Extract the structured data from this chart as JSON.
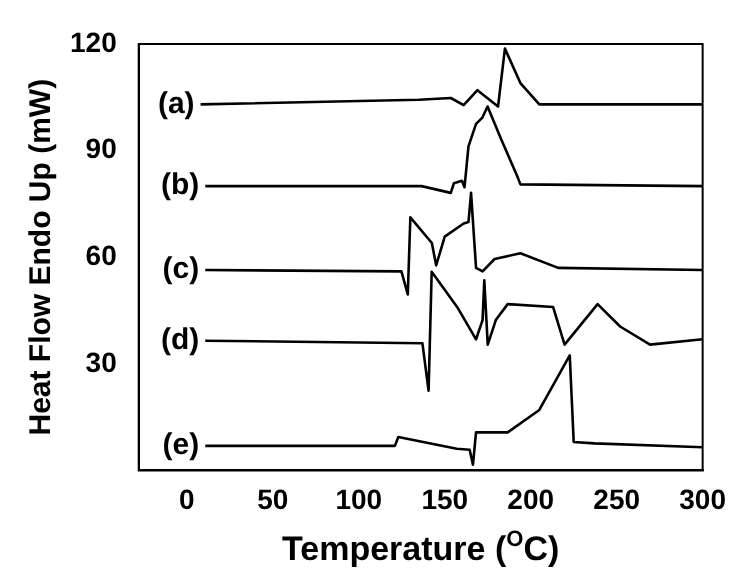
{
  "chart_data": {
    "type": "line",
    "xlabel": "Temperature ($^{O}$C)",
    "ylabel": "Heat Flow Endo Up (mW)",
    "xlim": [
      -28,
      300
    ],
    "xticks": [
      0,
      50,
      100,
      150,
      200,
      250,
      300
    ],
    "ylim": [
      0,
      120
    ],
    "yticks": [
      30,
      60,
      90,
      120
    ],
    "grid": false,
    "legend": false,
    "marker": "none",
    "line_style": "solid",
    "series": [
      {
        "name": "(a)",
        "color": "#000000",
        "x": [
          8,
          135,
          153.5,
          161,
          169,
          181,
          185,
          194,
          205,
          300
        ],
        "values": [
          103,
          104.3,
          104.8,
          102.8,
          107,
          102.4,
          118.7,
          109,
          103,
          103
        ]
      },
      {
        "name": "(b)",
        "color": "#000000",
        "x": [
          10.7,
          136.5,
          153.5,
          155.3,
          160,
          161.5,
          163.8,
          168.2,
          171.9,
          174.9,
          183,
          192,
          194,
          300
        ],
        "values": [
          80,
          80,
          78.1,
          80.8,
          81.5,
          79.7,
          91.2,
          97.5,
          99.3,
          102.4,
          93,
          83,
          80.5,
          80
        ]
      },
      {
        "name": "(c)",
        "color": "#000000",
        "x": [
          10.7,
          124.8,
          128.5,
          130,
          142.5,
          145,
          150,
          161,
          163.8,
          165.3,
          168.2,
          172,
          179,
          194,
          216,
          300
        ],
        "values": [
          56.4,
          56,
          49.5,
          71.2,
          64,
          57.7,
          65.8,
          69.5,
          69.9,
          78.1,
          57,
          56,
          59.5,
          61.1,
          57,
          56.4
        ]
      },
      {
        "name": "(d)",
        "color": "#000000",
        "x": [
          10.7,
          137,
          140.6,
          142.4,
          157.2,
          168.2,
          172,
          173,
          175,
          179.7,
          186.6,
          213,
          219.7,
          238.9,
          252,
          269.4,
          300
        ],
        "values": [
          36.5,
          35.8,
          22.4,
          55.9,
          46,
          36.9,
          42.3,
          53.5,
          35.4,
          42.3,
          46.8,
          46,
          35.4,
          46.8,
          40.5,
          35.4,
          36.9
        ]
      },
      {
        "name": "(e)",
        "color": "#000000",
        "x": [
          10.7,
          121,
          123,
          157,
          164.5,
          166.4,
          168.2,
          186.6,
          205,
          222.7,
          225,
          237,
          300
        ],
        "values": [
          6.9,
          6.9,
          9.4,
          6.1,
          5.8,
          1.6,
          10.7,
          10.7,
          17,
          32.4,
          8,
          7.6,
          6.5
        ]
      }
    ]
  }
}
